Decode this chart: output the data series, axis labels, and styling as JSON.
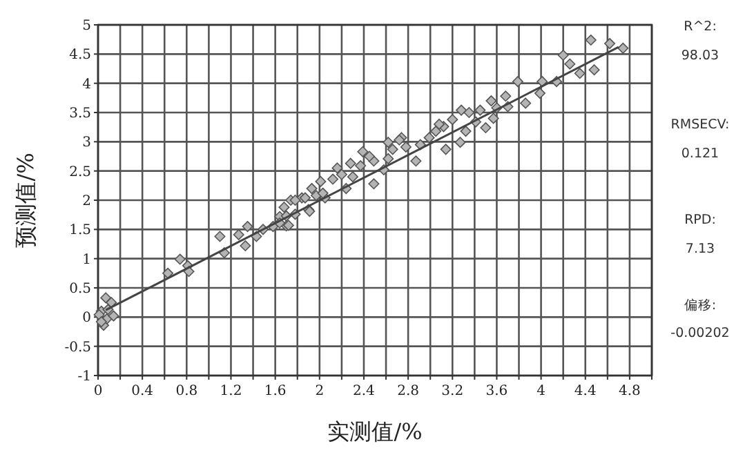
{
  "chart_data": {
    "type": "scatter",
    "xlabel": "实测值/%",
    "ylabel": "预测值/%",
    "grid": true,
    "xlim": [
      0,
      5
    ],
    "ylim": [
      -1,
      5
    ],
    "xticks": [
      0,
      {
        "value": 0.2,
        "label": null
      },
      0.4,
      {
        "value": 0.6,
        "label": null
      },
      0.8,
      {
        "value": 1.0,
        "label": null
      },
      1.2,
      {
        "value": 1.4,
        "label": null
      },
      1.6,
      {
        "value": 1.8,
        "label": null
      },
      2,
      {
        "value": 2.2,
        "label": null
      },
      2.4,
      {
        "value": 2.6,
        "label": null
      },
      2.8,
      {
        "value": 3.0,
        "label": null
      },
      3.2,
      {
        "value": 3.4,
        "label": null
      },
      3.6,
      {
        "value": 3.8,
        "label": null
      },
      4,
      {
        "value": 4.2,
        "label": null
      },
      4.4,
      {
        "value": 4.6,
        "label": null
      },
      4.8,
      {
        "value": 5.0,
        "label": null
      }
    ],
    "yticks": [
      -1,
      -0.5,
      0,
      0.5,
      1,
      1.5,
      2,
      2.5,
      3,
      3.5,
      4,
      4.5,
      5
    ],
    "annotations": [
      "R^2:",
      "98.03",
      "RMSECV:",
      "0.121",
      "RPD:",
      "7.13",
      "偏移:",
      "-0.00202"
    ],
    "series": [
      {
        "type": "scatter",
        "marker": "diamond",
        "color": "#b4b4b4",
        "x": [
          0.03,
          0.07,
          0.12,
          0.05,
          0.08,
          0.14,
          0.01,
          0.09,
          0.03,
          0.63,
          0.74,
          0.81,
          0.82,
          1.1,
          1.14,
          1.27,
          1.33,
          1.35,
          1.43,
          1.49,
          1.58,
          1.64,
          1.68,
          1.7,
          1.74,
          1.78,
          1.84,
          1.9,
          1.97,
          2.05,
          4.45,
          4.62,
          4.74,
          4.2,
          4.26,
          4.35,
          4.48,
          4.14,
          4.01,
          3.99,
          3.79,
          3.86,
          3.68,
          3.7,
          3.55,
          3.45,
          3.57,
          3.5,
          3.28,
          3.32,
          3.27,
          3.2,
          3.12,
          3.05,
          3.14,
          2.99,
          2.91,
          2.74,
          2.78,
          2.87,
          2.66,
          2.62,
          2.49,
          2.45,
          2.58,
          2.37,
          2.28,
          2.3,
          2.2,
          2.12,
          2.24,
          2.49,
          2.01,
          2.03,
          1.93,
          1.87,
          1.78,
          1.91,
          1.7,
          1.72,
          1.64,
          2.62,
          2.72,
          3.08,
          3.35,
          3.41,
          3.6,
          2.39,
          2.16
        ],
        "values": [
          0.1,
          0.33,
          0.25,
          -0.14,
          -0.03,
          0.02,
          0.04,
          0.13,
          -0.08,
          0.75,
          0.99,
          0.88,
          0.78,
          1.38,
          1.1,
          1.41,
          1.22,
          1.55,
          1.38,
          1.5,
          1.55,
          1.72,
          1.88,
          1.56,
          2.0,
          1.76,
          2.04,
          1.84,
          2.08,
          2.04,
          4.74,
          4.68,
          4.6,
          4.48,
          4.33,
          4.17,
          4.23,
          4.03,
          4.03,
          3.83,
          4.03,
          3.66,
          3.78,
          3.6,
          3.7,
          3.54,
          3.4,
          3.24,
          3.54,
          3.18,
          2.99,
          3.38,
          3.26,
          3.18,
          2.87,
          3.07,
          2.95,
          3.07,
          2.91,
          2.67,
          2.87,
          2.71,
          2.67,
          2.75,
          2.52,
          2.59,
          2.63,
          2.4,
          2.44,
          2.36,
          2.2,
          2.28,
          2.32,
          2.12,
          2.2,
          2.04,
          2.0,
          1.81,
          1.73,
          1.57,
          1.61,
          2.99,
          3.03,
          3.3,
          3.5,
          3.34,
          3.58,
          2.83,
          2.55
        ]
      },
      {
        "type": "line",
        "color": "#444444",
        "x": [
          0.07,
          4.7
        ],
        "values": [
          0.12,
          4.62
        ]
      }
    ]
  }
}
